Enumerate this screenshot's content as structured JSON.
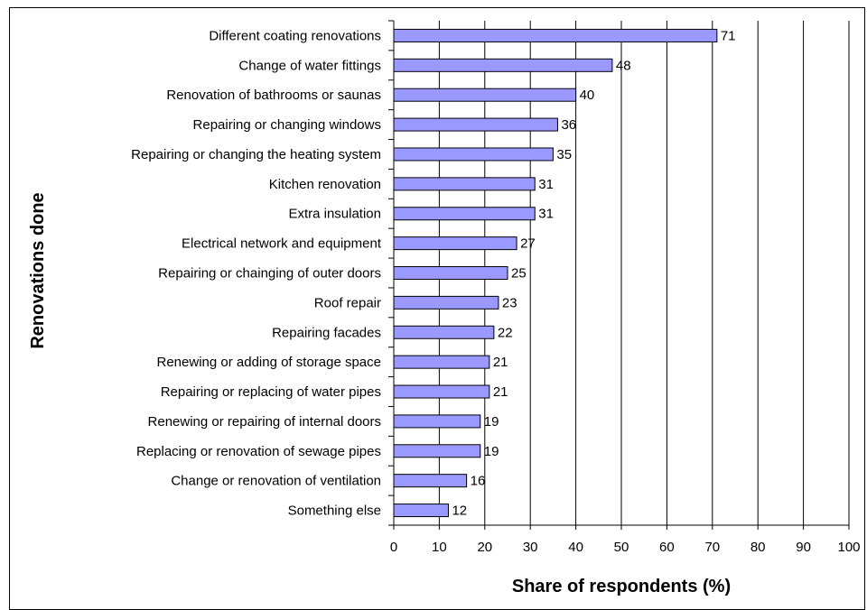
{
  "chart_data": {
    "type": "bar",
    "orientation": "horizontal",
    "title": "",
    "xlabel": "Share of respondents (%)",
    "ylabel": "Renovations done",
    "xlim": [
      0,
      100
    ],
    "xticks": [
      0,
      10,
      20,
      30,
      40,
      50,
      60,
      70,
      80,
      90,
      100
    ],
    "grid": true,
    "bar_color": "#9999ff",
    "categories": [
      "Different coating renovations",
      "Change of water fittings",
      "Renovation of bathrooms or saunas",
      "Repairing or changing windows",
      "Repairing or changing the heating system",
      "Kitchen renovation",
      "Extra insulation",
      "Electrical network and equipment",
      "Repairing or chainging of outer doors",
      "Roof repair",
      "Repairing facades",
      "Renewing or adding of storage space",
      "Repairing or replacing of water pipes",
      "Renewing or repairing of internal doors",
      "Replacing or renovation of sewage pipes",
      "Change or renovation of ventilation",
      "Something else"
    ],
    "values": [
      71,
      48,
      40,
      36,
      35,
      31,
      31,
      27,
      25,
      23,
      22,
      21,
      21,
      19,
      19,
      16,
      12
    ]
  }
}
